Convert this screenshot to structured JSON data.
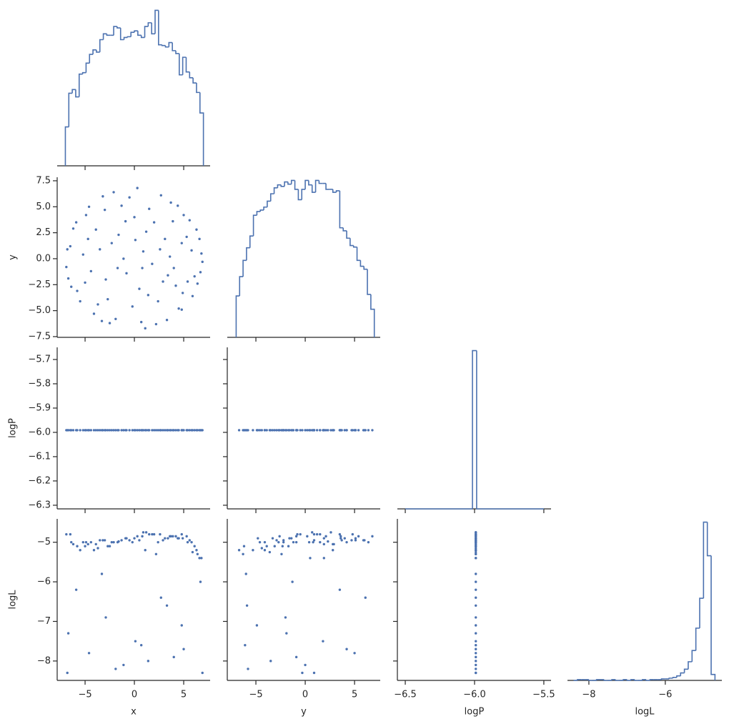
{
  "chart_data": {
    "type": "pairplot",
    "color": "#4c72b0",
    "variables": [
      {
        "name": "x",
        "xlim": [
          -7.83,
          7.68
        ],
        "xticks": [
          {
            "value": -5,
            "label": "−5"
          },
          0,
          5
        ],
        "bins": [
          -7,
          -6.65,
          -6.3,
          -5.95,
          -5.6,
          -5.25,
          -4.9,
          -4.55,
          -4.2,
          -3.85,
          -3.5,
          -3.15,
          -2.8,
          -2.45,
          -2.1,
          -1.75,
          -1.4,
          -1.05,
          -0.7,
          -0.35,
          0,
          0.35,
          0.7,
          1.05,
          1.4,
          1.75,
          2.1,
          2.45,
          2.8,
          3.15,
          3.5,
          3.85,
          4.2,
          4.55,
          4.9,
          5.25,
          5.6,
          5.95,
          6.3,
          6.65,
          7
        ],
        "counts": [
          53,
          99,
          104,
          94,
          125,
          127,
          140,
          152,
          158,
          155,
          172,
          180,
          178,
          178,
          190,
          188,
          172,
          175,
          176,
          182,
          184,
          178,
          175,
          190,
          195,
          180,
          212,
          165,
          164,
          162,
          168,
          157,
          153,
          124,
          148,
          128,
          120,
          113,
          100,
          72
        ]
      },
      {
        "name": "y",
        "xlim": [
          -7.9,
          7.6
        ],
        "xticks": [
          {
            "value": -5,
            "label": "−5"
          },
          0,
          5
        ],
        "ylim": [
          -7.57,
          7.84
        ],
        "yticks": [
          7.5,
          {
            "value": 5,
            "label": "5.0"
          },
          2.5,
          {
            "value": 0,
            "label": "0.0"
          },
          {
            "value": -2.5,
            "label": "−2.5"
          },
          {
            "value": -5,
            "label": "−5.0"
          },
          {
            "value": -7.5,
            "label": "−7.5"
          }
        ],
        "bins": [
          -7,
          -6.65,
          -6.3,
          -5.95,
          -5.6,
          -5.25,
          -4.9,
          -4.55,
          -4.2,
          -3.85,
          -3.5,
          -3.15,
          -2.8,
          -2.45,
          -2.1,
          -1.75,
          -1.4,
          -1.05,
          -0.7,
          -0.35,
          0,
          0.35,
          0.7,
          1.05,
          1.4,
          1.75,
          2.1,
          2.45,
          2.8,
          3.15,
          3.5,
          3.85,
          4.2,
          4.55,
          4.9,
          5.25,
          5.6,
          5.95,
          6.3,
          6.65,
          7
        ],
        "counts": [
          56,
          82,
          104,
          121,
          137,
          165,
          170,
          172,
          176,
          184,
          194,
          202,
          206,
          204,
          210,
          207,
          212,
          200,
          186,
          200,
          212,
          206,
          196,
          212,
          208,
          208,
          200,
          200,
          196,
          198,
          148,
          144,
          134,
          124,
          122,
          104,
          96,
          92,
          58,
          38
        ]
      },
      {
        "name": "logP",
        "xlim": [
          -6.557,
          -5.448
        ],
        "xticks": [
          {
            "value": -6.5,
            "label": "−6.5"
          },
          {
            "value": -6.0,
            "label": "−6.0"
          },
          {
            "value": -5.5,
            "label": "−5.5"
          }
        ],
        "ylim": [
          -6.315,
          -5.65
        ],
        "yticks": [
          {
            "value": -5.7,
            "label": "−5.7"
          },
          {
            "value": -5.8,
            "label": "−5.8"
          },
          {
            "value": -5.9,
            "label": "−5.9"
          },
          {
            "value": -6.0,
            "label": "−6.0"
          },
          {
            "value": -6.1,
            "label": "−6.1"
          },
          {
            "value": -6.2,
            "label": "−6.2"
          },
          {
            "value": -6.3,
            "label": "−6.3"
          }
        ],
        "bins": [
          -6.5,
          -6.015,
          -5.985,
          -5.5
        ],
        "counts": [
          0,
          80,
          0
        ]
      },
      {
        "name": "logL",
        "xlim": [
          -8.56,
          -4.52
        ],
        "xticks": [
          {
            "value": -8,
            "label": "−8"
          },
          {
            "value": -6,
            "label": "−6"
          }
        ],
        "ylim": [
          -8.49,
          -4.41
        ],
        "yticks": [
          {
            "value": -5,
            "label": "−5"
          },
          {
            "value": -6,
            "label": "−6"
          },
          {
            "value": -7,
            "label": "−7"
          },
          {
            "value": -8,
            "label": "−8"
          }
        ],
        "bins": [
          -8.4,
          -8.3,
          -8.2,
          -8.1,
          -8.0,
          -7.9,
          -7.8,
          -7.7,
          -7.6,
          -7.5,
          -7.4,
          -7.3,
          -7.2,
          -7.1,
          -7.0,
          -6.9,
          -6.8,
          -6.7,
          -6.6,
          -6.5,
          -6.4,
          -6.3,
          -6.2,
          -6.1,
          -6.0,
          -5.9,
          -5.8,
          -5.7,
          -5.6,
          -5.5,
          -5.4,
          -5.3,
          -5.2,
          -5.1,
          -5.0,
          -4.9,
          -4.8,
          -4.7
        ],
        "counts": [
          0,
          1,
          1,
          1,
          0,
          0,
          1,
          1,
          0,
          0,
          1,
          0,
          0,
          1,
          0,
          1,
          0,
          0,
          1,
          0,
          1,
          1,
          1,
          2,
          2,
          3,
          4,
          6,
          10,
          15,
          25,
          40,
          70,
          110,
          212,
          167,
          8
        ]
      }
    ],
    "samples": [
      [
        -6.5,
        -5.8,
        -4.9,
        -4.1,
        -3.2,
        -2.5,
        -1.6,
        -0.8,
        0.3,
        1.1,
        2.0,
        2.9,
        3.7,
        4.5,
        5.3,
        6.1,
        6.8,
        -6.9,
        -5.2,
        -3.9,
        -2.7,
        -1.3,
        -0.2,
        0.9,
        1.8,
        3.1,
        4.2,
        5.6,
        6.4,
        -6.2,
        -5.5,
        -4.4,
        -3.5,
        -2.1,
        -0.9,
        0.5,
        1.5,
        2.4,
        3.6,
        4.8,
        5.9,
        6.6,
        -6.7,
        -4.6,
        -2.9,
        -1.9,
        0.1,
        1.4,
        2.7,
        4.0,
        4.8,
        6.9,
        -5.9,
        -3.3,
        -1.1,
        0.7,
        3.3,
        5.0,
        6.7,
        -6.8,
        -5.0,
        -3.0,
        -1.7,
        0,
        1.2,
        2.2,
        3.9,
        4.9,
        5.8,
        6.3,
        -6.4,
        -4.7,
        -3.7,
        -2.3,
        -0.5,
        0.8,
        2.6,
        3.4,
        4.4,
        5.4
      ],
      [
        1.2,
        -3.1,
        4.2,
        -5.3,
        6.0,
        -6.2,
        2.3,
        -1.4,
        6.8,
        -6.7,
        3.5,
        -2.2,
        5.4,
        -4.8,
        2.1,
        -1.7,
        0.5,
        -0.8,
        0.4,
        2.8,
        -3.9,
        5.1,
        -4.6,
        0.7,
        -0.5,
        1.9,
        -2.6,
        3.7,
        -2.4,
        2.9,
        -4.1,
        -1.2,
        0.9,
        6.4,
        3.6,
        -2.9,
        4.8,
        -4.1,
        0.2,
        1.5,
        -3.6,
        1.9,
        -1.9,
        5.0,
        -2.0,
        -5.8,
        1.8,
        -3.5,
        6.1,
        -0.9,
        -4.9,
        -0.3,
        3.5,
        -6.0,
        0,
        -6.1,
        -5.9,
        4.2,
        -1.3,
        0.9,
        -2.3,
        4.7,
        -0.9,
        4.0,
        2.6,
        -6.3,
        3.6,
        -3.3,
        0.8,
        2.8,
        -2.7,
        1.9,
        -4.4,
        1.5,
        5.9,
        -0.9,
        0.9,
        -1.6,
        5.1,
        -2.2
      ],
      [
        -5.991,
        -5.991,
        -5.991,
        -5.991,
        -5.991,
        -5.991,
        -5.991,
        -5.991,
        -5.991,
        -5.991,
        -5.991,
        -5.991,
        -5.991,
        -5.991,
        -5.991,
        -5.991,
        -5.991,
        -5.991,
        -5.991,
        -5.991,
        -5.991,
        -5.991,
        -5.991,
        -5.991,
        -5.991,
        -5.991,
        -5.991,
        -5.991,
        -5.991,
        -5.991,
        -5.991,
        -5.991,
        -5.991,
        -5.991,
        -5.991,
        -5.991,
        -5.991,
        -5.991,
        -5.991,
        -5.991,
        -5.991,
        -5.991,
        -5.991,
        -5.991,
        -5.991,
        -5.991,
        -5.991,
        -5.991,
        -5.991,
        -5.991,
        -5.991,
        -5.991,
        -5.991,
        -5.991,
        -5.991,
        -5.991,
        -5.991,
        -5.991,
        -5.991,
        -5.991,
        -5.991,
        -5.991,
        -5.991,
        -5.991,
        -5.991,
        -5.991,
        -5.991,
        -5.991,
        -5.991,
        -5.991,
        -5.991,
        -5.991,
        -5.991,
        -5.991,
        -5.991,
        -5.991,
        -5.991,
        -5.991,
        -5.991,
        -5.991
      ],
      [
        -4.8,
        -5.1,
        -5.0,
        -5.2,
        -4.95,
        -5.1,
        -4.98,
        -4.9,
        -4.85,
        -5.2,
        -4.8,
        -4.95,
        -4.85,
        -4.9,
        -4.85,
        -5.1,
        -5.4,
        -4.8,
        -5.0,
        -5.05,
        -5.1,
        -4.95,
        -5.0,
        -4.75,
        -4.8,
        -4.9,
        -4.85,
        -4.95,
        -5.3,
        -5.05,
        -5.2,
        -5.0,
        -4.95,
        -5.0,
        -4.9,
        -4.95,
        -4.8,
        -5.0,
        -4.85,
        -4.8,
        -5.25,
        -5.4,
        -7.3,
        -7.8,
        -6.9,
        -8.2,
        -7.5,
        -8.0,
        -6.4,
        -7.9,
        -7.1,
        -8.3,
        -6.2,
        -5.8,
        -8.1,
        -7.6,
        -6.6,
        -7.7,
        -6.0,
        -8.3,
        -5.1,
        -4.95,
        -5.0,
        -4.9,
        -4.75,
        -5.3,
        -4.85,
        -4.9,
        -5.0,
        -5.2,
        -5.0,
        -5.05,
        -5.15,
        -5.0,
        -4.95,
        -4.85,
        -4.8,
        -4.9,
        -4.9,
        -5.0
      ]
    ]
  }
}
